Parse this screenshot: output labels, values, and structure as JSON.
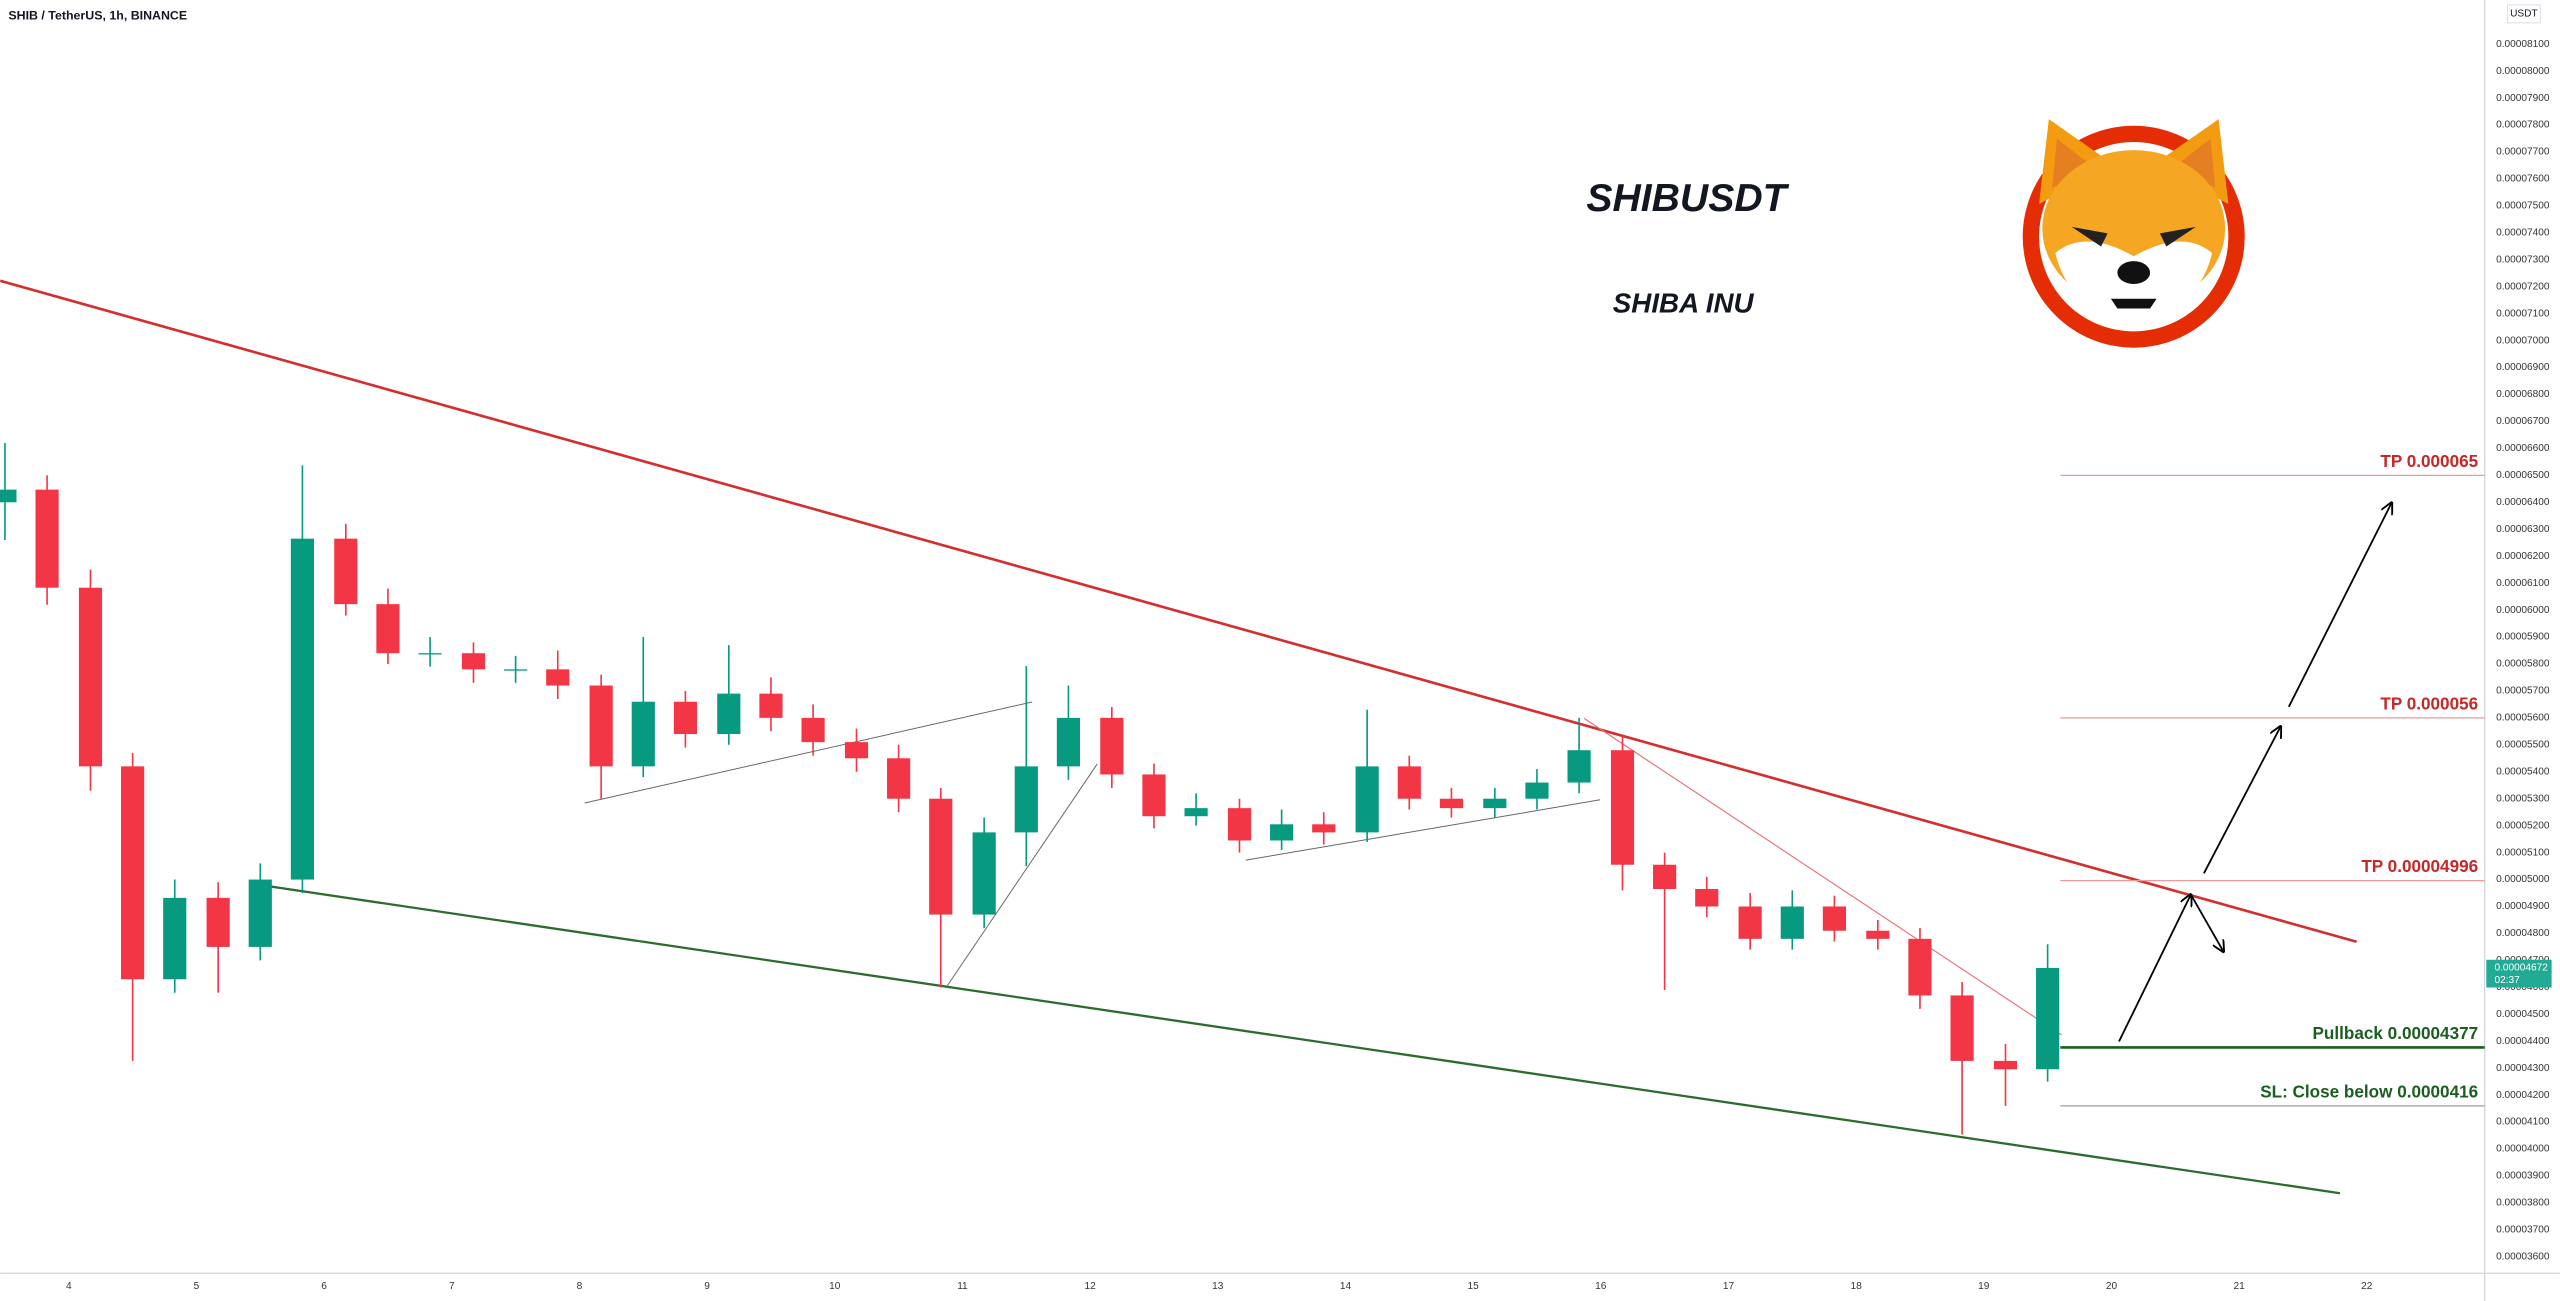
{
  "chart_data": {
    "type": "candlestick",
    "title": "SHIB / TetherUS, 1h, BINANCE",
    "symbol": "SHIBUSDT",
    "subtitle": "SHIBA INU",
    "currency": "USDT",
    "up_color": "#089981",
    "down_color": "#f23645",
    "grid": false,
    "xlim": [
      3.463,
      22.77
    ],
    "xticks": [
      4,
      5,
      6,
      7,
      8,
      9,
      10,
      11,
      12,
      13,
      14,
      15,
      16,
      17,
      18,
      19,
      20,
      21,
      22
    ],
    "ylim": [
      3.539e-05,
      8.264e-05
    ],
    "yticks": [
      {
        "value": 3.6e-05,
        "label": "0.00003600"
      },
      {
        "value": 3.7e-05,
        "label": "0.00003700"
      },
      {
        "value": 3.8e-05,
        "label": "0.00003800"
      },
      {
        "value": 3.9e-05,
        "label": "0.00003900"
      },
      {
        "value": 4e-05,
        "label": "0.00004000"
      },
      {
        "value": 4.1e-05,
        "label": "0.00004100"
      },
      {
        "value": 4.2e-05,
        "label": "0.00004200"
      },
      {
        "value": 4.3e-05,
        "label": "0.00004300"
      },
      {
        "value": 4.4e-05,
        "label": "0.00004400"
      },
      {
        "value": 4.5e-05,
        "label": "0.00004500"
      },
      {
        "value": 4.6e-05,
        "label": "0.00004600"
      },
      {
        "value": 4.7e-05,
        "label": "0.00004700"
      },
      {
        "value": 4.8e-05,
        "label": "0.00004800"
      },
      {
        "value": 4.9e-05,
        "label": "0.00004900"
      },
      {
        "value": 5e-05,
        "label": "0.00005000"
      },
      {
        "value": 5.1e-05,
        "label": "0.00005100"
      },
      {
        "value": 5.2e-05,
        "label": "0.00005200"
      },
      {
        "value": 5.3e-05,
        "label": "0.00005300"
      },
      {
        "value": 5.4e-05,
        "label": "0.00005400"
      },
      {
        "value": 5.5e-05,
        "label": "0.00005500"
      },
      {
        "value": 5.6e-05,
        "label": "0.00005600"
      },
      {
        "value": 5.7e-05,
        "label": "0.00005700"
      },
      {
        "value": 5.8e-05,
        "label": "0.00005800"
      },
      {
        "value": 5.9e-05,
        "label": "0.00005900"
      },
      {
        "value": 6e-05,
        "label": "0.00006000"
      },
      {
        "value": 6.1e-05,
        "label": "0.00006100"
      },
      {
        "value": 6.2e-05,
        "label": "0.00006200"
      },
      {
        "value": 6.3e-05,
        "label": "0.00006300"
      },
      {
        "value": 6.4e-05,
        "label": "0.00006400"
      },
      {
        "value": 6.5e-05,
        "label": "0.00006500"
      },
      {
        "value": 6.6e-05,
        "label": "0.00006600"
      },
      {
        "value": 6.7e-05,
        "label": "0.00006700"
      },
      {
        "value": 6.8e-05,
        "label": "0.00006800"
      },
      {
        "value": 6.9e-05,
        "label": "0.00006900"
      },
      {
        "value": 7e-05,
        "label": "0.00007000"
      },
      {
        "value": 7.1e-05,
        "label": "0.00007100"
      },
      {
        "value": 7.2e-05,
        "label": "0.00007200"
      },
      {
        "value": 7.3e-05,
        "label": "0.00007300"
      },
      {
        "value": 7.4e-05,
        "label": "0.00007400"
      },
      {
        "value": 7.5e-05,
        "label": "0.00007500"
      },
      {
        "value": 7.6e-05,
        "label": "0.00007600"
      },
      {
        "value": 7.7e-05,
        "label": "0.00007700"
      },
      {
        "value": 7.8e-05,
        "label": "0.00007800"
      },
      {
        "value": 7.9e-05,
        "label": "0.00007900"
      },
      {
        "value": 8e-05,
        "label": "0.00008000"
      },
      {
        "value": 8.1e-05,
        "label": "0.00008100"
      }
    ],
    "x": [
      3.5,
      3.83,
      4.17,
      4.5,
      4.83,
      5.17,
      5.5,
      5.83,
      6.17,
      6.5,
      6.83,
      7.17,
      7.5,
      7.83,
      8.17,
      8.5,
      8.83,
      9.17,
      9.5,
      9.83,
      10.17,
      10.5,
      10.83,
      11.17,
      11.5,
      11.83,
      12.17,
      12.5,
      12.83,
      13.17,
      13.5,
      13.83,
      14.17,
      14.5,
      14.83,
      15.17,
      15.5,
      15.83,
      16.17,
      16.5,
      16.83,
      17.17,
      17.5,
      17.83,
      18.17,
      18.5,
      18.83,
      19.17,
      19.5
    ],
    "open": [
      6.4e-05,
      6.447e-05,
      6.083e-05,
      5.42e-05,
      4.63e-05,
      4.932e-05,
      4.75e-05,
      5e-05,
      6.265e-05,
      6.022e-05,
      5.84e-05,
      5.84e-05,
      5.78e-05,
      5.78e-05,
      5.72e-05,
      5.42e-05,
      5.66e-05,
      5.54e-05,
      5.69e-05,
      5.6e-05,
      5.51e-05,
      5.45e-05,
      5.3e-05,
      4.87e-05,
      5.175e-05,
      5.42e-05,
      5.6e-05,
      5.39e-05,
      5.235e-05,
      5.265e-05,
      5.145e-05,
      5.205e-05,
      5.175e-05,
      5.42e-05,
      5.3e-05,
      5.265e-05,
      5.3e-05,
      5.36e-05,
      5.48e-05,
      5.055e-05,
      4.965e-05,
      4.9e-05,
      4.78e-05,
      4.9e-05,
      4.81e-05,
      4.78e-05,
      4.57e-05,
      4.327e-05,
      4.296e-05
    ],
    "high": [
      6.62e-05,
      6.5e-05,
      6.15e-05,
      5.47e-05,
      5e-05,
      4.99e-05,
      5.06e-05,
      6.537e-05,
      6.32e-05,
      6.08e-05,
      5.9e-05,
      5.88e-05,
      5.83e-05,
      5.85e-05,
      5.76e-05,
      5.9e-05,
      5.7e-05,
      5.87e-05,
      5.75e-05,
      5.65e-05,
      5.56e-05,
      5.5e-05,
      5.34e-05,
      5.23e-05,
      5.792e-05,
      5.72e-05,
      5.64e-05,
      5.43e-05,
      5.32e-05,
      5.3e-05,
      5.26e-05,
      5.25e-05,
      5.63e-05,
      5.46e-05,
      5.34e-05,
      5.34e-05,
      5.41e-05,
      5.6e-05,
      5.53e-05,
      5.1e-05,
      5.01e-05,
      4.95e-05,
      4.96e-05,
      4.94e-05,
      4.85e-05,
      4.82e-05,
      4.62e-05,
      4.39e-05,
      4.76e-05
    ],
    "low": [
      6.26e-05,
      6.02e-05,
      5.33e-05,
      4.327e-05,
      4.58e-05,
      4.58e-05,
      4.7e-05,
      4.95e-05,
      5.98e-05,
      5.8e-05,
      5.79e-05,
      5.73e-05,
      5.73e-05,
      5.67e-05,
      5.3e-05,
      5.38e-05,
      5.49e-05,
      5.5e-05,
      5.55e-05,
      5.46e-05,
      5.4e-05,
      5.25e-05,
      4.6e-05,
      4.82e-05,
      5.05e-05,
      5.37e-05,
      5.34e-05,
      5.19e-05,
      5.2e-05,
      5.1e-05,
      5.11e-05,
      5.13e-05,
      5.14e-05,
      5.26e-05,
      5.23e-05,
      5.23e-05,
      5.26e-05,
      5.32e-05,
      4.96e-05,
      4.59e-05,
      4.86e-05,
      4.74e-05,
      4.74e-05,
      4.77e-05,
      4.74e-05,
      4.52e-05,
      4.054e-05,
      4.16e-05,
      4.25e-05
    ],
    "close": [
      6.447e-05,
      6.083e-05,
      5.42e-05,
      4.63e-05,
      4.932e-05,
      4.75e-05,
      5e-05,
      6.265e-05,
      6.022e-05,
      5.84e-05,
      5.84e-05,
      5.78e-05,
      5.78e-05,
      5.72e-05,
      5.42e-05,
      5.66e-05,
      5.54e-05,
      5.69e-05,
      5.6e-05,
      5.51e-05,
      5.45e-05,
      5.3e-05,
      4.87e-05,
      5.175e-05,
      5.42e-05,
      5.6e-05,
      5.39e-05,
      5.235e-05,
      5.265e-05,
      5.145e-05,
      5.205e-05,
      5.175e-05,
      5.42e-05,
      5.3e-05,
      5.265e-05,
      5.3e-05,
      5.36e-05,
      5.48e-05,
      5.055e-05,
      4.965e-05,
      4.9e-05,
      4.78e-05,
      4.9e-05,
      4.81e-05,
      4.78e-05,
      4.57e-05,
      4.327e-05,
      4.296e-05,
      4.672e-05
    ],
    "trendlines": [
      {
        "points": [
          [
            3.463,
            7.222e-05
          ],
          [
            21.92,
            4.769e-05
          ]
        ],
        "color": "#d32f2f",
        "width": 1.6
      },
      {
        "points": [
          [
            5.483,
            4.981e-05
          ],
          [
            21.79,
            3.836e-05
          ]
        ],
        "color": "#2e6b2e",
        "width": 1.4
      },
      {
        "points": [
          [
            15.87,
            5.598e-05
          ],
          [
            19.61,
            4.423e-05
          ]
        ],
        "color": "#e57373",
        "width": 0.7
      },
      {
        "points": [
          [
            8.041,
            5.284e-05
          ],
          [
            11.546,
            5.659e-05
          ]
        ],
        "color": "#666666",
        "width": 0.6
      },
      {
        "points": [
          [
            10.88,
            4.605e-05
          ],
          [
            12.056,
            5.429e-05
          ]
        ],
        "color": "#666666",
        "width": 0.6
      },
      {
        "points": [
          [
            13.22,
            5.072e-05
          ],
          [
            15.995,
            5.296e-05
          ]
        ],
        "color": "#666666",
        "width": 0.6
      }
    ],
    "levels": [
      {
        "label": "TP 0.000065",
        "value": 6.5e-05,
        "color": "#c62828",
        "line_color": "#ef9a9a"
      },
      {
        "label": "TP 0.000056",
        "value": 5.6e-05,
        "color": "#c62828",
        "line_color": "#ef9a9a"
      },
      {
        "label": "TP 0.00004996",
        "value": 4.996e-05,
        "color": "#c62828",
        "line_color": "#ef9a9a"
      },
      {
        "label": "Pullback 0.00004377",
        "value": 4.377e-05,
        "color": "#1b5e20",
        "line_color": "#1b5e20"
      },
      {
        "label": "SL: Close below 0.0000416",
        "value": 4.16e-05,
        "color": "#1b5e20",
        "line_color": "#9e9e9e"
      }
    ],
    "price_tag": {
      "label": "0.00004672",
      "countdown": "02:37",
      "color": "#22ab94"
    }
  }
}
